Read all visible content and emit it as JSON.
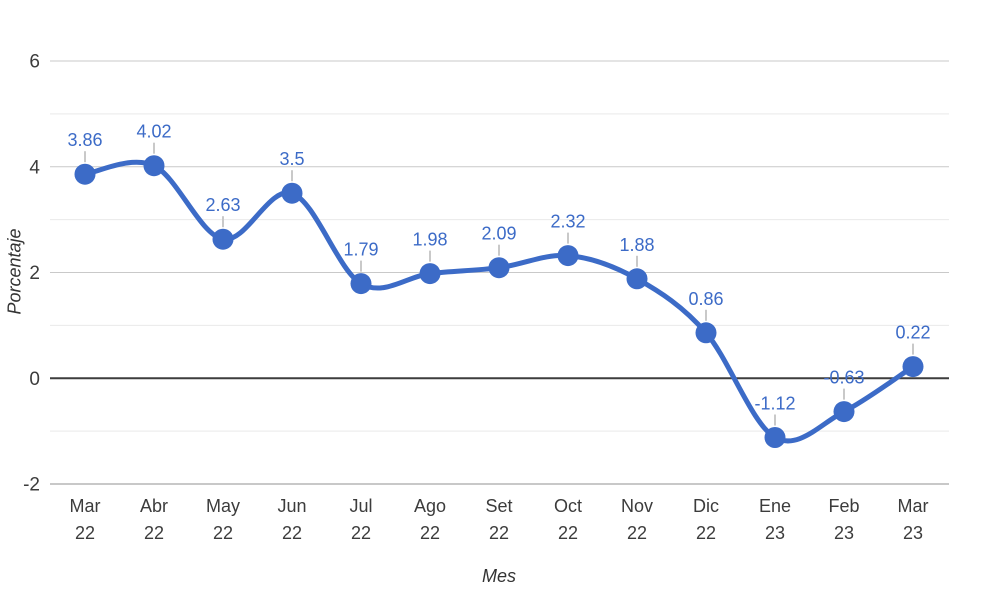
{
  "chart_data": {
    "type": "line",
    "smooth": true,
    "title": "",
    "xlabel": "Mes",
    "ylabel": "Porcentaje",
    "categories": [
      "Mar 22",
      "Abr 22",
      "May 22",
      "Jun 22",
      "Jul 22",
      "Ago 22",
      "Set 22",
      "Oct 22",
      "Nov 22",
      "Dic 22",
      "Ene 23",
      "Feb 23",
      "Mar 23"
    ],
    "values": [
      3.86,
      4.02,
      2.63,
      3.5,
      1.79,
      1.98,
      2.09,
      2.32,
      1.88,
      0.86,
      -1.12,
      -0.63,
      0.22
    ],
    "point_labels": [
      "3.86",
      "4.02",
      "2.63",
      "3.5",
      "1.79",
      "1.98",
      "2.09",
      "2.32",
      "1.88",
      "0.86",
      "-1.12",
      "-0.63",
      "0.22"
    ],
    "ylim": [
      -2,
      6
    ],
    "yticks": [
      -2,
      0,
      2,
      4,
      6
    ],
    "ytick_labels": [
      "-2",
      "0",
      "2",
      "4",
      "6"
    ],
    "minor_grid_step": 1,
    "grid": true,
    "legend": "none",
    "colors": {
      "series": "#3c6bc7",
      "data_label": "#3c6bc7",
      "grid_major": "#c9c9c9",
      "grid_minor": "#e9e9e9",
      "zero_line": "#3d3d3d",
      "baseline": "#b5b5b5",
      "axis_text": "#3c3c3c",
      "leader": "#c9c9c9",
      "background": "#ffffff"
    }
  }
}
